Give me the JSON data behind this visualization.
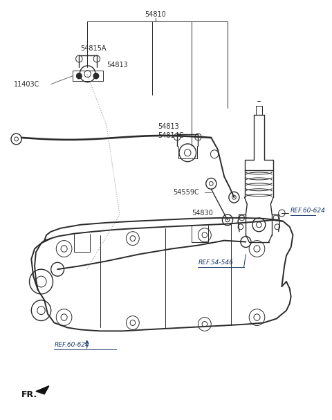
{
  "bg_color": "#ffffff",
  "line_color": "#2a2a2a",
  "label_color": "#2a2a2a",
  "ref_color": "#1a3a6b",
  "fig_width": 4.8,
  "fig_height": 6.07,
  "dpi": 100,
  "lw_main": 1.4,
  "lw_thin": 0.7,
  "lw_med": 1.0,
  "label_fs": 7.0,
  "ref_fs": 6.5,
  "title_fs": 8.5,
  "xlim": [
    0,
    480
  ],
  "ylim": [
    0,
    607
  ]
}
